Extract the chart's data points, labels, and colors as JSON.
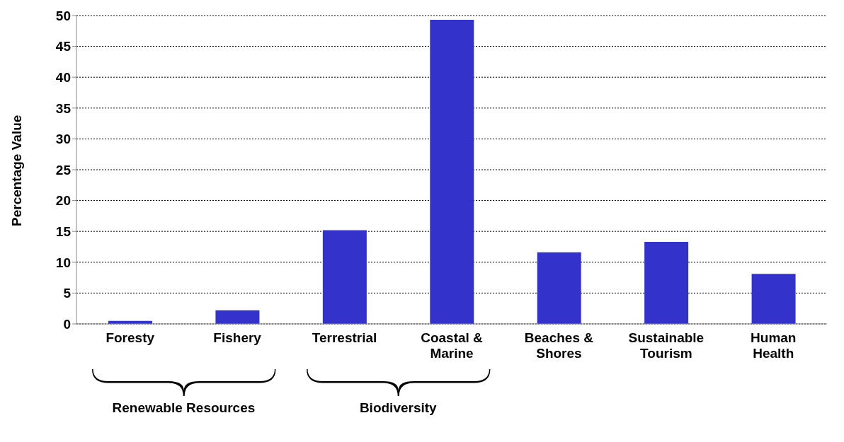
{
  "chart_data": {
    "type": "bar",
    "ylabel": "Percentage Value",
    "categories": [
      "Foresty",
      "Fishery",
      "Terrestrial",
      "Coastal & Marine",
      "Beaches & Shores",
      "Sustainable Tourism",
      "Human Health"
    ],
    "values": [
      0.5,
      2.2,
      15.2,
      49.3,
      11.6,
      13.3,
      8.1
    ],
    "color": "#3333cc",
    "ylim": [
      0,
      50
    ],
    "yticks": [
      0,
      5,
      10,
      15,
      20,
      25,
      30,
      35,
      40,
      45,
      50
    ],
    "grid": "y",
    "annotations": [
      "Renewable Resources",
      "Biodiversity"
    ]
  }
}
